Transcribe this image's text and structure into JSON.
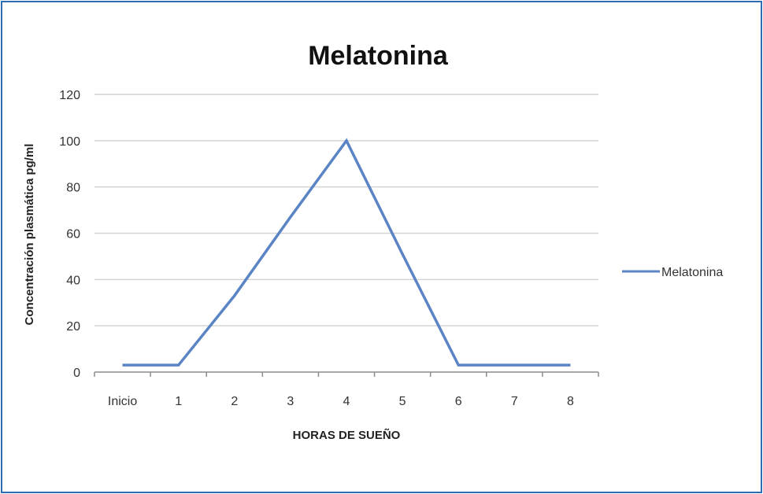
{
  "chart_data": {
    "type": "line",
    "title": "Melatonina",
    "xlabel": "HORAS DE SUEÑO",
    "ylabel": "Concentración plasmática pg/ml",
    "categories": [
      "Inicio",
      "1",
      "2",
      "3",
      "4",
      "5",
      "6",
      "7",
      "8"
    ],
    "series": [
      {
        "name": "Melatonina",
        "values": [
          3,
          3,
          33,
          67,
          100,
          51,
          3,
          3,
          3
        ]
      }
    ],
    "ylim": [
      0,
      120
    ],
    "yticks": [
      0,
      20,
      40,
      60,
      80,
      100,
      120
    ],
    "grid": true,
    "legend": "right",
    "colors": {
      "line": "#5b84c4",
      "grid": "#d4d4d4",
      "axis": "#8c8c8c",
      "frame": "#2e6db4"
    }
  }
}
